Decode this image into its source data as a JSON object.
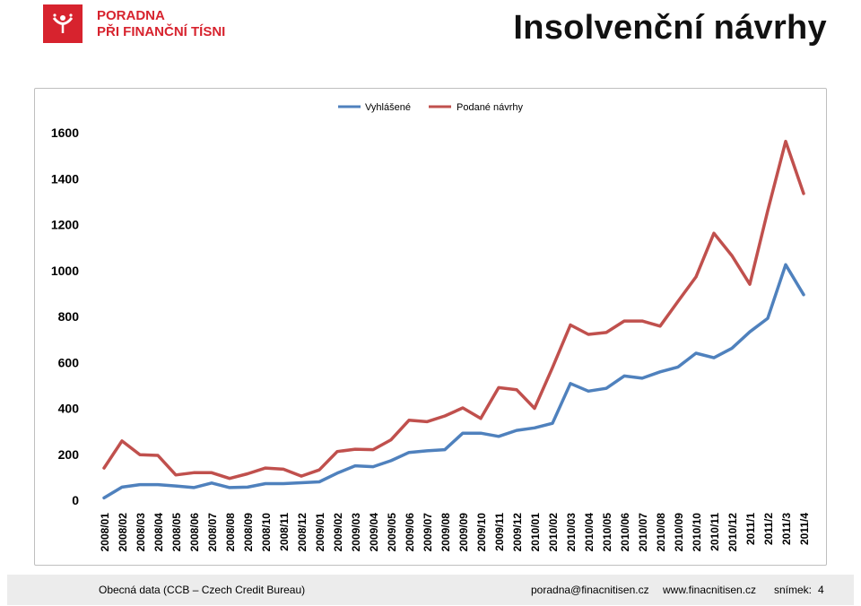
{
  "header": {
    "logo_line1": "PORADNA",
    "logo_line2": "PŘI FINANČNÍ TÍSNI",
    "title": "Insolvenční návrhy",
    "brand_color": "#d7232e"
  },
  "chart_data": {
    "type": "line",
    "title": "",
    "xlabel": "",
    "ylabel": "",
    "ylim": [
      0,
      1600
    ],
    "yticks": [
      0,
      200,
      400,
      600,
      800,
      1000,
      1200,
      1400,
      1600
    ],
    "grid": false,
    "legend_position": "top-center",
    "categories": [
      "2008/01",
      "2008/02",
      "2008/03",
      "2008/04",
      "2008/05",
      "2008/06",
      "2008/07",
      "2008/08",
      "2008/09",
      "2008/10",
      "2008/11",
      "2008/12",
      "2009/01",
      "2009/02",
      "2009/03",
      "2009/04",
      "2009/05",
      "2009/06",
      "2009/07",
      "2009/08",
      "2009/09",
      "2009/10",
      "2009/11",
      "2009/12",
      "2010/01",
      "2010/02",
      "2010/03",
      "2010/04",
      "2010/05",
      "2010/06",
      "2010/07",
      "2010/08",
      "2010/09",
      "2010/10",
      "2010/11",
      "2010/12",
      "2011/1",
      "2011/2",
      "2011/3",
      "2011/4"
    ],
    "series": [
      {
        "name": "Vyhlášené",
        "color": "#4f81bd",
        "values": [
          10,
          57,
          68,
          68,
          62,
          55,
          75,
          55,
          57,
          72,
          72,
          76,
          80,
          118,
          150,
          146,
          172,
          208,
          215,
          220,
          292,
          292,
          278,
          304,
          315,
          335,
          508,
          475,
          487,
          541,
          531,
          559,
          580,
          640,
          620,
          661,
          733,
          792,
          1025,
          895
        ]
      },
      {
        "name": "Podané návrhy",
        "color": "#c0504d",
        "values": [
          140,
          258,
          198,
          195,
          110,
          120,
          120,
          95,
          115,
          140,
          135,
          105,
          132,
          212,
          222,
          220,
          263,
          348,
          342,
          367,
          402,
          356,
          490,
          481,
          400,
          577,
          763,
          722,
          730,
          780,
          780,
          758,
          866,
          972,
          1162,
          1065,
          940,
          1260,
          1562,
          1335
        ]
      }
    ]
  },
  "footer": {
    "source": "Obecná data  (CCB – Czech Credit Bureau)",
    "email": "poradna@finacnitisen.cz",
    "website": "www.finacnitisen.cz",
    "slide_label": "snímek:",
    "slide_number": "4"
  }
}
